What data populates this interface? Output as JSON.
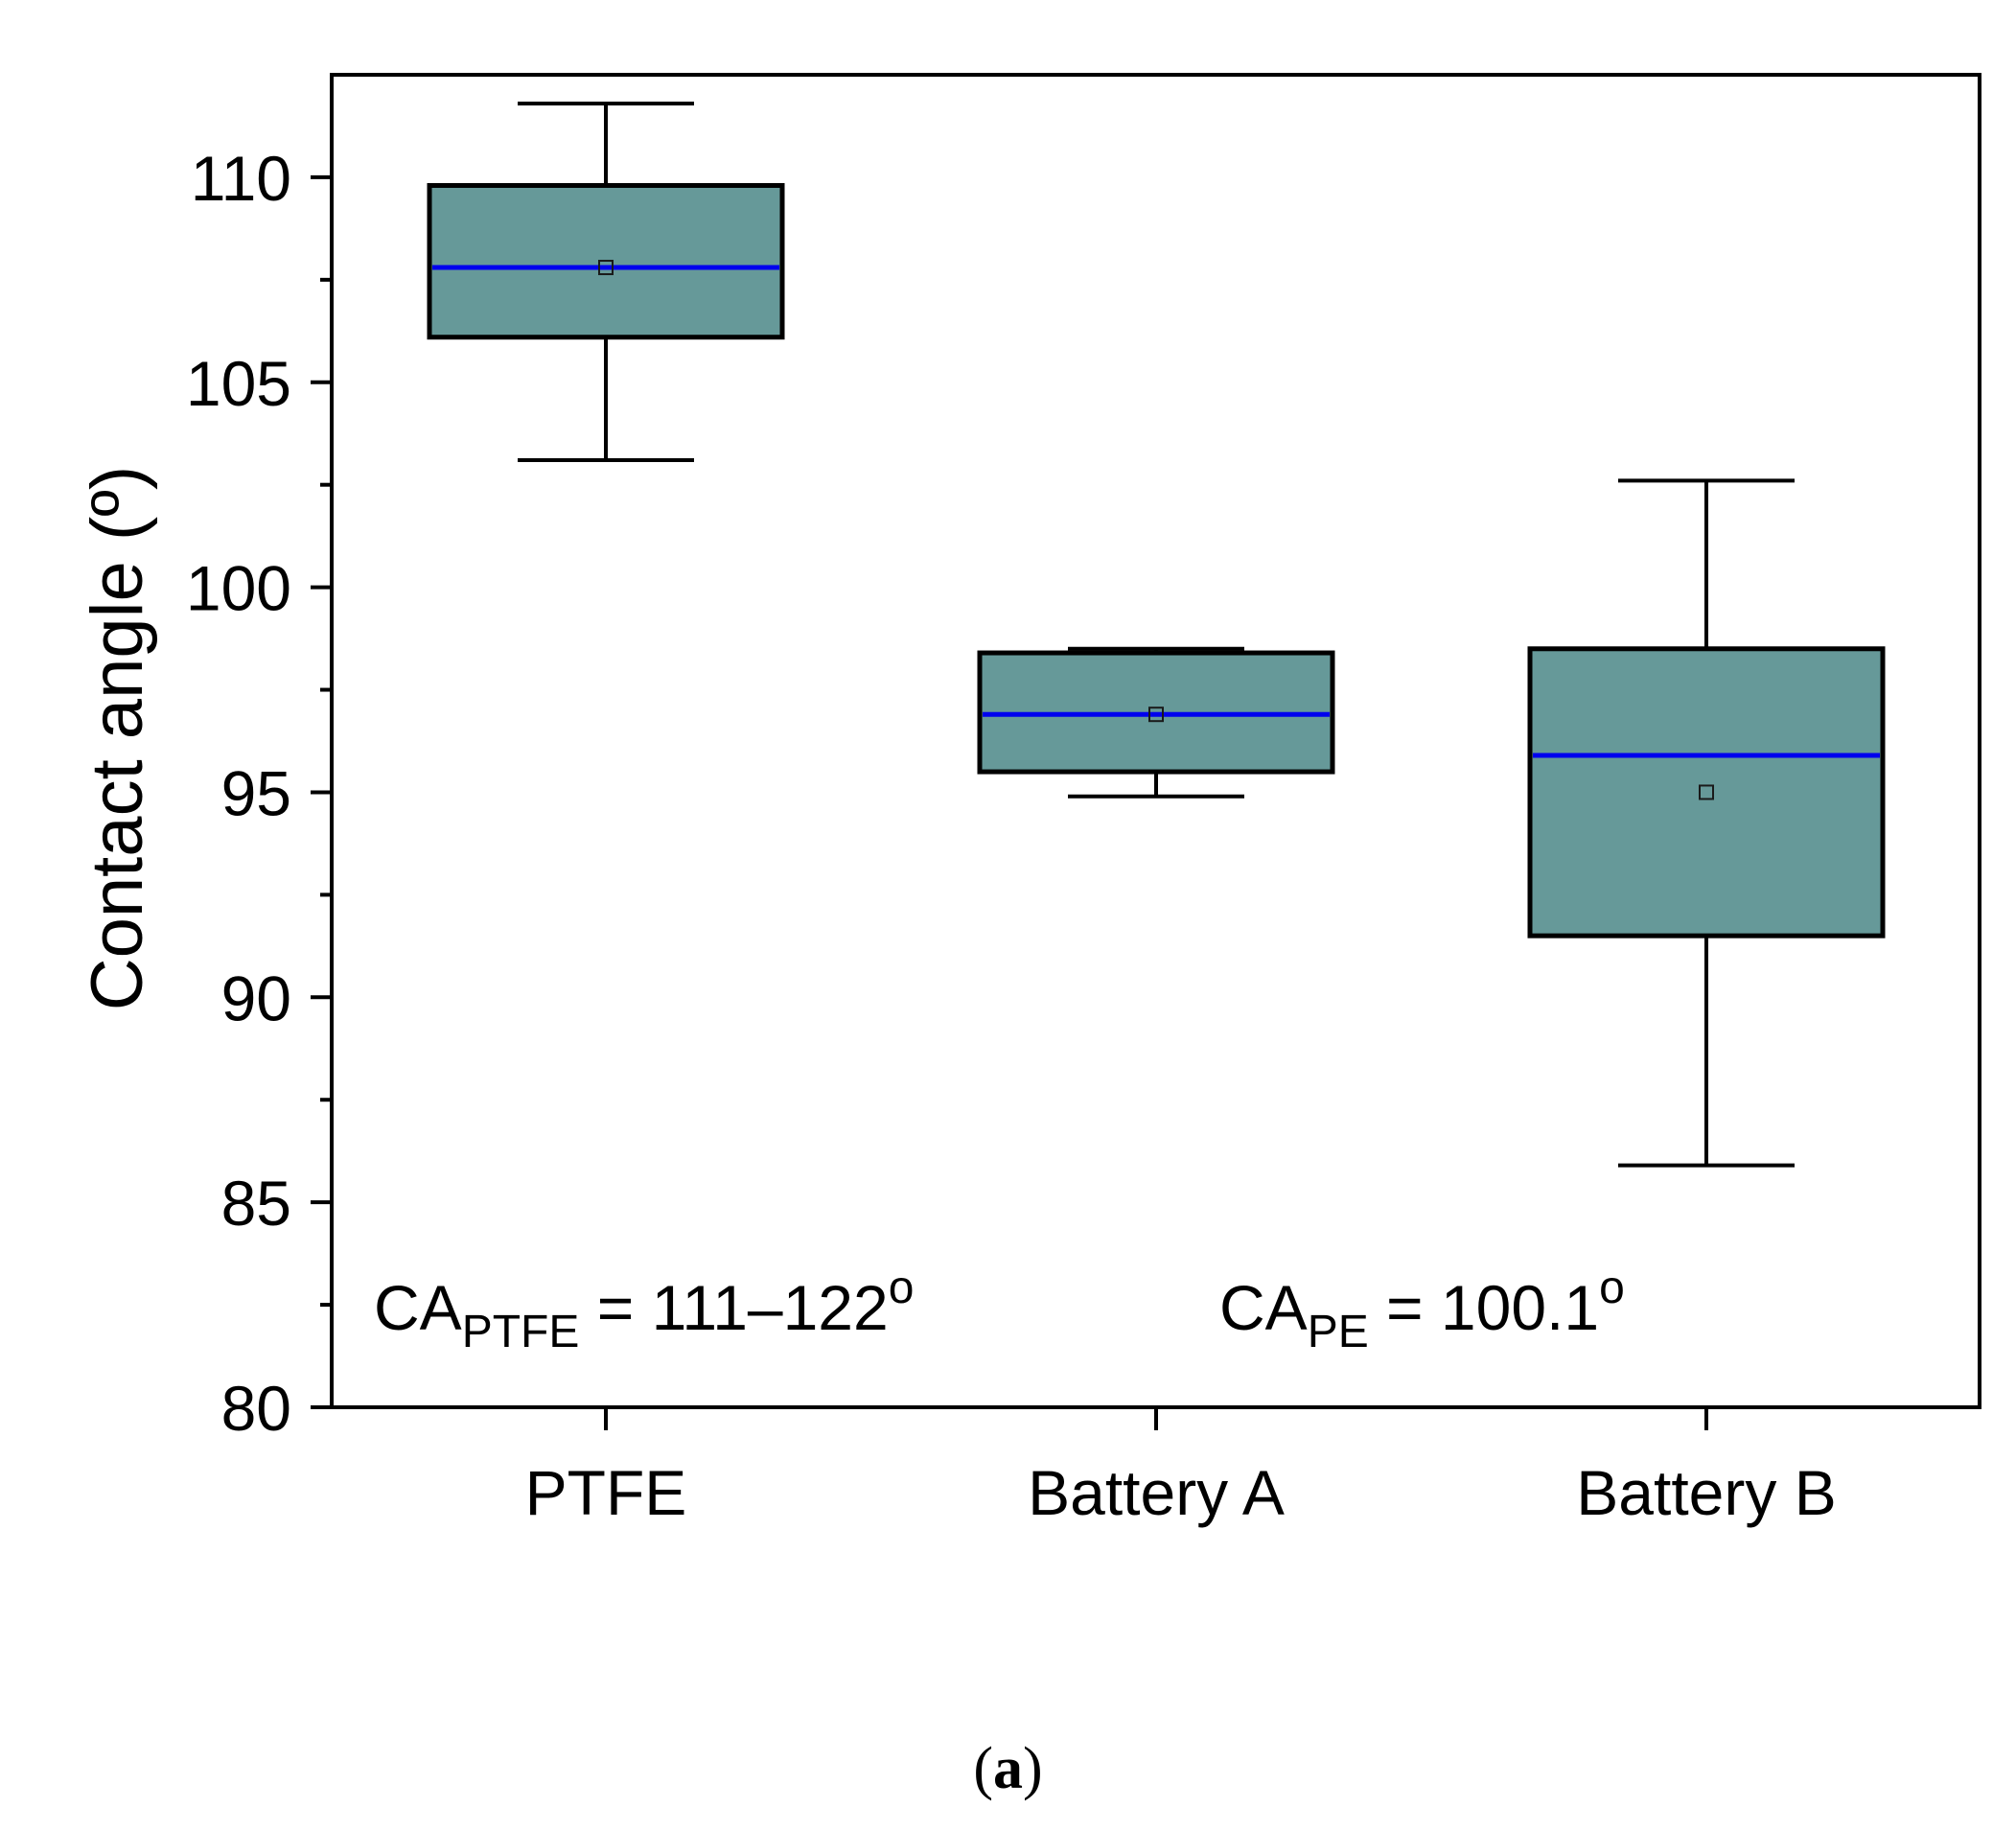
{
  "chart_data": {
    "type": "box",
    "ylabel": "Contact angle (º)",
    "xlabel": "",
    "ylim": [
      80,
      112.5
    ],
    "yticks": [
      80,
      85,
      90,
      95,
      100,
      105,
      110
    ],
    "categories": [
      "PTFE",
      "Battery A",
      "Battery B"
    ],
    "boxes": [
      {
        "name": "PTFE",
        "whisker_low": 103.1,
        "q1": 106.1,
        "median": 107.8,
        "q3": 109.8,
        "whisker_high": 111.8,
        "mean": 107.8
      },
      {
        "name": "Battery A",
        "whisker_low": 94.9,
        "q1": 95.5,
        "median": 96.9,
        "q3": 98.4,
        "whisker_high": 98.5,
        "mean": 96.9
      },
      {
        "name": "Battery B",
        "whisker_low": 85.9,
        "q1": 91.5,
        "median": 95.9,
        "q3": 98.5,
        "whisker_high": 102.6,
        "mean": 95.0
      }
    ],
    "annotations": [
      {
        "prefix": "CA",
        "subscript": "PTFE",
        "suffix": " = 111–122",
        "superscript": "o"
      },
      {
        "prefix": "CA",
        "subscript": "PE",
        "suffix": " = 100.1",
        "superscript": "o"
      }
    ],
    "colors": {
      "box_fill": "#669999",
      "median": "#0000ee",
      "outline": "#000000"
    }
  },
  "caption": {
    "open": "(",
    "label": "a",
    "close": ")"
  }
}
